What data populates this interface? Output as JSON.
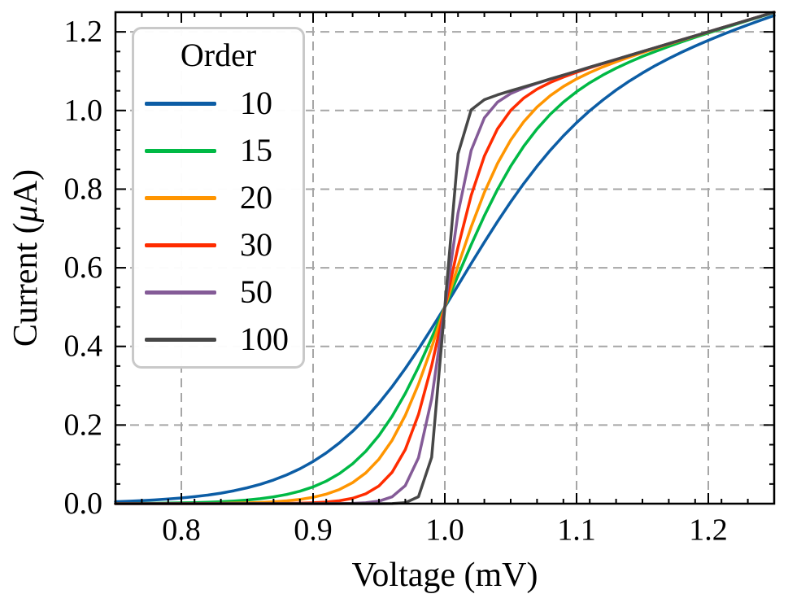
{
  "figure": {
    "background": "#ffffff"
  },
  "axes": {
    "xlabel": "Voltage (mV)",
    "ylabel_prefix": "Current (",
    "ylabel_mu": "μ",
    "ylabel_suffix": "A)",
    "xlim": [
      0.75,
      1.25
    ],
    "ylim": [
      0,
      1.25
    ],
    "x_major_ticks": [
      0.8,
      0.9,
      1.0,
      1.1,
      1.2
    ],
    "x_tick_labels": [
      "0.8",
      "0.9",
      "1.0",
      "1.1",
      "1.2"
    ],
    "x_minor_step": 0.02,
    "y_major_ticks": [
      0.0,
      0.2,
      0.4,
      0.6,
      0.8,
      1.0,
      1.2
    ],
    "y_tick_labels": [
      "0.0",
      "0.2",
      "0.4",
      "0.6",
      "0.8",
      "1.0",
      "1.2"
    ],
    "y_minor_step": 0.05,
    "grid_color": "#a6a6a6",
    "grid_dash": "11 7",
    "spine_color": "#000000"
  },
  "legend": {
    "title": "Order",
    "position": "upper-left",
    "border_color": "#c9c9c9",
    "background": "#ffffff",
    "entries": [
      {
        "label": "10",
        "color": "#0C5DA5"
      },
      {
        "label": "15",
        "color": "#00B945"
      },
      {
        "label": "20",
        "color": "#FF9500"
      },
      {
        "label": "30",
        "color": "#FF2C00"
      },
      {
        "label": "50",
        "color": "#845B97"
      },
      {
        "label": "100",
        "color": "#474747"
      }
    ]
  },
  "chart_data": {
    "type": "line",
    "title": "",
    "xlabel": "Voltage (mV)",
    "ylabel": "Current (μA)",
    "xlim": [
      0.75,
      1.25
    ],
    "ylim": [
      0,
      1.25
    ],
    "grid": true,
    "legend_title": "Order",
    "legend_position": "upper left",
    "x": [
      0.75,
      0.76,
      0.77,
      0.78,
      0.79,
      0.8,
      0.81,
      0.82,
      0.83,
      0.84,
      0.85,
      0.86,
      0.87,
      0.88,
      0.89,
      0.9,
      0.91,
      0.92,
      0.93,
      0.94,
      0.95,
      0.96,
      0.97,
      0.98,
      0.99,
      1.0,
      1.01,
      1.02,
      1.03,
      1.04,
      1.05,
      1.06,
      1.07,
      1.08,
      1.09,
      1.1,
      1.11,
      1.12,
      1.13,
      1.14,
      1.15,
      1.16,
      1.17,
      1.18,
      1.19,
      1.2,
      1.21,
      1.22,
      1.23,
      1.24,
      1.25
    ],
    "series": [
      {
        "name": "10",
        "color": "#0C5DA5",
        "values": [
          0.005,
          0.0062,
          0.0077,
          0.0095,
          0.0117,
          0.0144,
          0.0177,
          0.0218,
          0.0268,
          0.0329,
          0.0403,
          0.0493,
          0.0602,
          0.0732,
          0.0888,
          0.1073,
          0.1291,
          0.1545,
          0.184,
          0.2176,
          0.2555,
          0.2976,
          0.3437,
          0.3933,
          0.4457,
          0.5,
          0.5553,
          0.6107,
          0.665,
          0.7176,
          0.7676,
          0.8146,
          0.8583,
          0.8986,
          0.9354,
          0.9689,
          0.9993,
          1.0268,
          1.0519,
          1.0747,
          1.0955,
          1.1146,
          1.1322,
          1.1486,
          1.164,
          1.1784,
          1.1921,
          1.2052,
          1.2178,
          1.2299,
          1.2416
        ]
      },
      {
        "name": "15",
        "color": "#00B945",
        "values": [
          0.0004,
          0.0006,
          0.0008,
          0.0011,
          0.0015,
          0.002,
          0.0027,
          0.0037,
          0.005,
          0.0069,
          0.0093,
          0.0127,
          0.0173,
          0.0234,
          0.0317,
          0.0427,
          0.0573,
          0.0765,
          0.1015,
          0.1333,
          0.1733,
          0.2222,
          0.2804,
          0.3473,
          0.4213,
          0.5,
          0.5802,
          0.6586,
          0.7323,
          0.7993,
          0.8585,
          0.9096,
          0.9533,
          0.9902,
          1.0213,
          1.0478,
          1.0705,
          1.0902,
          1.1076,
          1.1232,
          1.1374,
          1.1505,
          1.1629,
          1.1747,
          1.186,
          1.197,
          1.2078,
          1.2183,
          1.2288,
          1.2391,
          1.2493
        ]
      },
      {
        "name": "20",
        "color": "#FF9500",
        "values": [
          0.0,
          0.0001,
          0.0001,
          0.0001,
          0.0002,
          0.0003,
          0.0004,
          0.0006,
          0.0009,
          0.0014,
          0.0021,
          0.0032,
          0.0048,
          0.0072,
          0.0108,
          0.0162,
          0.0242,
          0.036,
          0.0533,
          0.0782,
          0.1132,
          0.1613,
          0.2245,
          0.3038,
          0.3973,
          0.5,
          0.6047,
          0.7038,
          0.7916,
          0.8653,
          0.9248,
          0.9718,
          1.0087,
          1.0377,
          1.061,
          1.0802,
          1.0965,
          1.1109,
          1.1238,
          1.1358,
          1.1472,
          1.1581,
          1.1687,
          1.1791,
          1.1894,
          1.1996,
          1.2099,
          1.2199,
          1.23,
          1.24,
          1.25
        ]
      },
      {
        "name": "30",
        "color": "#FF2C00",
        "values": [
          0.0,
          0.0,
          0.0,
          0.0,
          0.0,
          0.0,
          0.0,
          0.0,
          0.0,
          0.0001,
          0.0001,
          0.0002,
          0.0004,
          0.0007,
          0.0012,
          0.0022,
          0.0041,
          0.0075,
          0.0137,
          0.025,
          0.0451,
          0.0798,
          0.1376,
          0.2268,
          0.3508,
          0.5,
          0.6521,
          0.7839,
          0.8839,
          0.9535,
          1.0002,
          1.0318,
          1.0542,
          1.0712,
          1.0851,
          1.0973,
          1.1085,
          1.1192,
          1.1295,
          1.1397,
          1.1499,
          1.1599,
          1.17,
          1.18,
          1.19,
          1.2,
          1.21,
          1.22,
          1.23,
          1.24,
          1.25
        ]
      },
      {
        "name": "50",
        "color": "#845B97",
        "values": [
          0.0,
          0.0,
          0.0,
          0.0,
          0.0,
          0.0,
          0.0,
          0.0,
          0.0,
          0.0,
          0.0,
          0.0,
          0.0,
          0.0,
          0.0,
          0.0,
          0.0001,
          0.0003,
          0.0008,
          0.0023,
          0.0064,
          0.0173,
          0.046,
          0.1168,
          0.2663,
          0.5,
          0.7384,
          0.8984,
          0.9811,
          1.0213,
          1.043,
          1.0574,
          1.069,
          1.0796,
          1.0899,
          1.1,
          1.11,
          1.12,
          1.13,
          1.14,
          1.15,
          1.16,
          1.17,
          1.18,
          1.19,
          1.2,
          1.21,
          1.22,
          1.23,
          1.24,
          1.25
        ]
      },
      {
        "name": "100",
        "color": "#474747",
        "values": [
          0.0,
          0.0,
          0.0,
          0.0,
          0.0,
          0.0,
          0.0,
          0.0,
          0.0,
          0.0,
          0.0,
          0.0,
          0.0,
          0.0,
          0.0,
          0.0,
          0.0,
          0.0,
          0.0,
          0.0,
          0.0,
          0.0003,
          0.0024,
          0.0176,
          0.118,
          0.5,
          0.8896,
          1.0017,
          1.0275,
          1.0397,
          1.05,
          1.06,
          1.07,
          1.08,
          1.09,
          1.1,
          1.11,
          1.12,
          1.13,
          1.14,
          1.15,
          1.16,
          1.17,
          1.18,
          1.19,
          1.2,
          1.21,
          1.22,
          1.23,
          1.24,
          1.25
        ]
      }
    ]
  }
}
